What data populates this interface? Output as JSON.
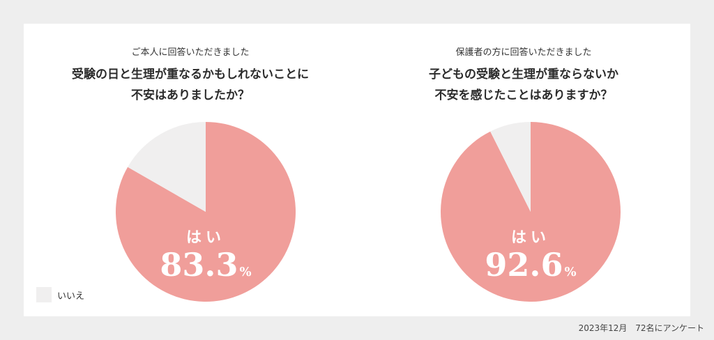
{
  "footer": {
    "date": "2023年12月",
    "survey": "72名にアンケート"
  },
  "legend": {
    "no_label": "いいえ"
  },
  "colors": {
    "yes": "#f09e9a",
    "no": "#f0efef",
    "label": "#ffffff"
  },
  "chart_data": [
    {
      "type": "pie",
      "subtitle": "ご本人に回答いただきました",
      "title_lines": [
        "受験の日と生理が重なるかもしれないことに",
        "不安はありましたか？"
      ],
      "slices": [
        {
          "label": "はい",
          "value": 83.3,
          "value_text": "83.3",
          "unit": "%",
          "color": "#f09e9a"
        },
        {
          "label": "いいえ",
          "value": 16.7,
          "color": "#f0efef"
        }
      ]
    },
    {
      "type": "pie",
      "subtitle": "保護者の方に回答いただきました",
      "title_lines": [
        "子どもの受験と生理が重ならないか",
        "不安を感じたことはありますか？"
      ],
      "slices": [
        {
          "label": "はい",
          "value": 92.6,
          "value_text": "92.6",
          "unit": "%",
          "color": "#f09e9a"
        },
        {
          "label": "いいえ",
          "value": 7.4,
          "color": "#f0efef"
        }
      ]
    }
  ]
}
